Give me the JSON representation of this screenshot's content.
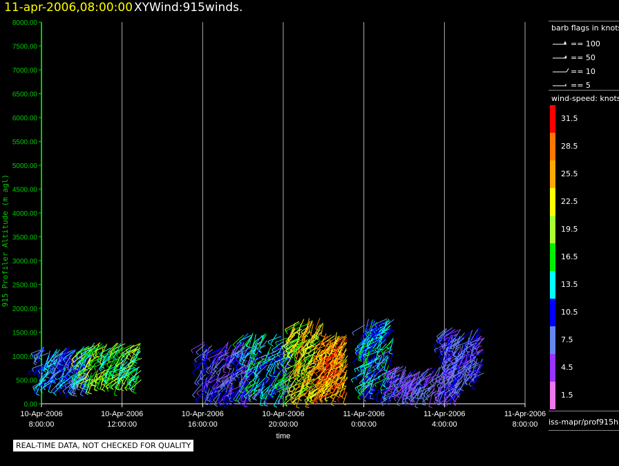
{
  "header": {
    "date": "11-apr-2006,08:00:00",
    "name": "XYWind:915winds."
  },
  "chart_data": {
    "type": "scatter",
    "title": "11-apr-2006,08:00:00 XYWind:915winds.",
    "xlabel": "time",
    "ylabel": "915 Profiler Altitude (m agl)",
    "xlim": [
      0,
      24
    ],
    "ylim": [
      0,
      8000
    ],
    "grid": "vertical",
    "x_ticks": [
      {
        "x": 0,
        "line1": "10-Apr-2006",
        "line2": "8:00:00"
      },
      {
        "x": 4,
        "line1": "10-Apr-2006",
        "line2": "12:00:00"
      },
      {
        "x": 8,
        "line1": "10-Apr-2006",
        "line2": "16:00:00"
      },
      {
        "x": 12,
        "line1": "10-Apr-2006",
        "line2": "20:00:00"
      },
      {
        "x": 16,
        "line1": "11-Apr-2006",
        "line2": "0:00:00"
      },
      {
        "x": 20,
        "line1": "11-Apr-2006",
        "line2": "4:00:00"
      },
      {
        "x": 24,
        "line1": "11-Apr-2006",
        "line2": "8:00:00"
      }
    ],
    "y_ticks": [
      "0.00",
      "500.00",
      "1000.00",
      "1500.00",
      "2000.00",
      "2500.00",
      "3000.00",
      "3500.00",
      "4000.00",
      "4500.00",
      "5000.00",
      "5500.00",
      "6000.00",
      "6500.00",
      "7000.00",
      "7500.00",
      "8000.00"
    ],
    "y_tick_values": [
      0,
      500,
      1000,
      1500,
      2000,
      2500,
      3000,
      3500,
      4000,
      4500,
      5000,
      5500,
      6000,
      6500,
      7000,
      7500,
      8000
    ],
    "series": [
      {
        "hours": [
          0.0,
          2.5
        ],
        "alt": [
          400,
          1200
        ],
        "speed": [
          6,
          14
        ]
      },
      {
        "hours": [
          2.0,
          5.0
        ],
        "alt": [
          500,
          1300
        ],
        "speed": [
          12,
          22
        ]
      },
      {
        "hours": [
          8.0,
          10.5
        ],
        "alt": [
          200,
          1300
        ],
        "speed": [
          4,
          12
        ]
      },
      {
        "hours": [
          10.0,
          12.5
        ],
        "alt": [
          200,
          1500
        ],
        "speed": [
          6,
          18
        ]
      },
      {
        "hours": [
          12.5,
          14.0
        ],
        "alt": [
          200,
          1800
        ],
        "speed": [
          17,
          28
        ]
      },
      {
        "hours": [
          14.0,
          15.2
        ],
        "alt": [
          200,
          1500
        ],
        "speed": [
          22,
          32
        ]
      },
      {
        "hours": [
          16.0,
          17.5
        ],
        "alt": [
          300,
          1800
        ],
        "speed": [
          8,
          16
        ]
      },
      {
        "hours": [
          17.5,
          21.0
        ],
        "alt": [
          200,
          800
        ],
        "speed": [
          4,
          10
        ]
      },
      {
        "hours": [
          20.0,
          22.0
        ],
        "alt": [
          600,
          1600
        ],
        "speed": [
          4,
          11
        ]
      }
    ]
  },
  "legend": {
    "flags_title": "barb flags in knots",
    "flags": [
      {
        "label": "== 100",
        "kind": "pennant"
      },
      {
        "label": "== 50",
        "kind": "flag"
      },
      {
        "label": "== 10",
        "kind": "full"
      },
      {
        "label": "== 5",
        "kind": "half"
      }
    ],
    "colors_title": "wind-speed: knots",
    "scale": [
      {
        "label": "31.5",
        "color": "#ff0000"
      },
      {
        "label": "28.5",
        "color": "#ff7700"
      },
      {
        "label": "25.5",
        "color": "#ffaa00"
      },
      {
        "label": "22.5",
        "color": "#ffff00"
      },
      {
        "label": "19.5",
        "color": "#aaff33"
      },
      {
        "label": "16.5",
        "color": "#00ee00"
      },
      {
        "label": "13.5",
        "color": "#00ffff"
      },
      {
        "label": "10.5",
        "color": "#0000ff"
      },
      {
        "label": "7.5",
        "color": "#6688ee"
      },
      {
        "label": "4.5",
        "color": "#9933ff"
      },
      {
        "label": "1.5",
        "color": "#ee77ee"
      }
    ]
  },
  "source": "iss-mapr/prof915h",
  "quality_note": "REAL-TIME DATA, NOT CHECKED FOR QUALITY",
  "colors": {
    "axis": "#00cc00",
    "grid": "#b0b0b0",
    "title_date": "#ffff00"
  }
}
